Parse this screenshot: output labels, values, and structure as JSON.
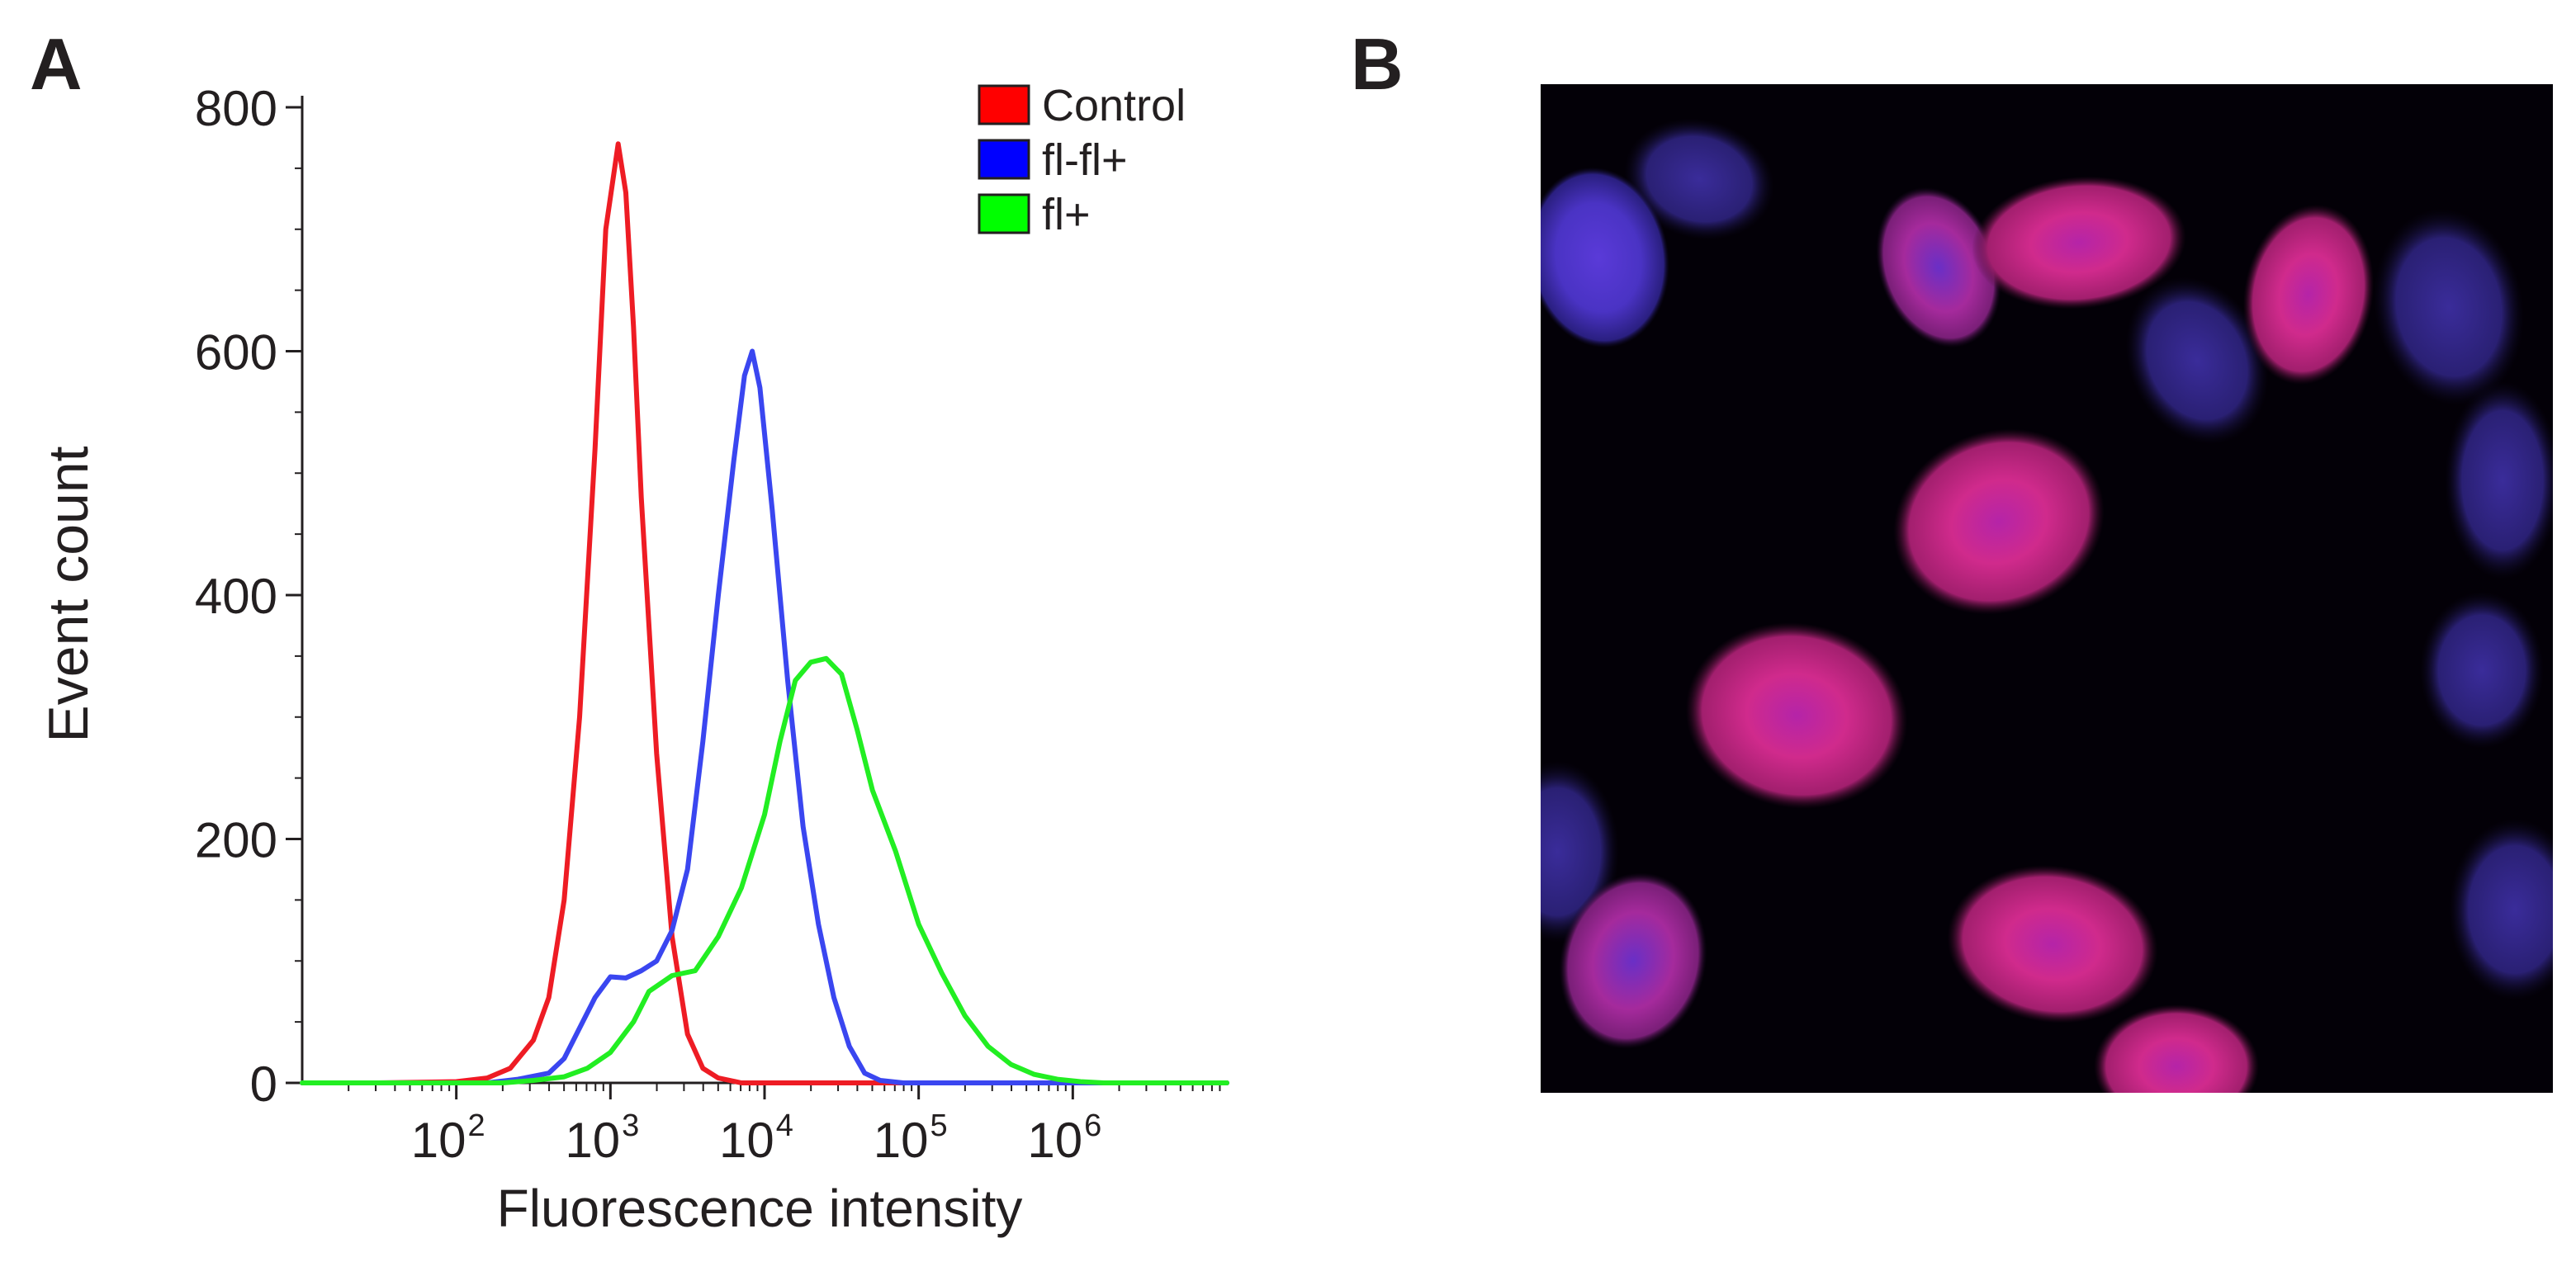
{
  "panel_labels": {
    "a": "A",
    "b": "B"
  },
  "chart_data": {
    "type": "line",
    "title": "",
    "xlabel": "Fluorescence intensity",
    "ylabel": "Event count",
    "x_scale": "log10",
    "xlim_log10": [
      1.0,
      7.0
    ],
    "ylim": [
      0,
      800
    ],
    "x_ticks": [
      {
        "base": "10",
        "exp": "2",
        "log10": 2
      },
      {
        "base": "10",
        "exp": "3",
        "log10": 3
      },
      {
        "base": "10",
        "exp": "4",
        "log10": 4
      },
      {
        "base": "10",
        "exp": "5",
        "log10": 5
      },
      {
        "base": "10",
        "exp": "6",
        "log10": 6
      }
    ],
    "y_ticks": [
      0,
      200,
      400,
      600,
      800
    ],
    "legend": {
      "placement": "top-right",
      "items": [
        {
          "label": "Control",
          "color": "#ff0000"
        },
        {
          "label": "fl-fl+",
          "color": "#0000ff"
        },
        {
          "label": "fl+",
          "color": "#00ff00"
        }
      ]
    },
    "series": [
      {
        "name": "Control",
        "color": "#ee1c24",
        "points": [
          [
            1.0,
            0
          ],
          [
            1.5,
            0
          ],
          [
            2.0,
            1
          ],
          [
            2.2,
            4
          ],
          [
            2.35,
            12
          ],
          [
            2.5,
            35
          ],
          [
            2.6,
            70
          ],
          [
            2.7,
            150
          ],
          [
            2.8,
            300
          ],
          [
            2.9,
            520
          ],
          [
            2.97,
            700
          ],
          [
            3.05,
            770
          ],
          [
            3.1,
            730
          ],
          [
            3.15,
            620
          ],
          [
            3.2,
            480
          ],
          [
            3.3,
            270
          ],
          [
            3.4,
            120
          ],
          [
            3.5,
            40
          ],
          [
            3.6,
            12
          ],
          [
            3.7,
            4
          ],
          [
            3.85,
            0
          ],
          [
            7.0,
            0
          ]
        ]
      },
      {
        "name": "fl-fl+",
        "color": "#3a46f0",
        "points": [
          [
            1.0,
            0
          ],
          [
            2.2,
            0
          ],
          [
            2.4,
            3
          ],
          [
            2.6,
            8
          ],
          [
            2.7,
            20
          ],
          [
            2.8,
            45
          ],
          [
            2.9,
            70
          ],
          [
            3.0,
            87
          ],
          [
            3.1,
            86
          ],
          [
            3.2,
            92
          ],
          [
            3.3,
            100
          ],
          [
            3.4,
            125
          ],
          [
            3.5,
            175
          ],
          [
            3.6,
            280
          ],
          [
            3.7,
            400
          ],
          [
            3.8,
            510
          ],
          [
            3.87,
            580
          ],
          [
            3.92,
            600
          ],
          [
            3.97,
            570
          ],
          [
            4.05,
            470
          ],
          [
            4.15,
            330
          ],
          [
            4.25,
            210
          ],
          [
            4.35,
            130
          ],
          [
            4.45,
            70
          ],
          [
            4.55,
            30
          ],
          [
            4.65,
            8
          ],
          [
            4.75,
            2
          ],
          [
            4.9,
            0
          ],
          [
            7.0,
            0
          ]
        ]
      },
      {
        "name": "fl+",
        "color": "#22ee22",
        "points": [
          [
            1.0,
            0
          ],
          [
            2.3,
            0
          ],
          [
            2.5,
            2
          ],
          [
            2.7,
            5
          ],
          [
            2.85,
            12
          ],
          [
            3.0,
            25
          ],
          [
            3.15,
            50
          ],
          [
            3.25,
            75
          ],
          [
            3.4,
            88
          ],
          [
            3.55,
            92
          ],
          [
            3.7,
            120
          ],
          [
            3.85,
            160
          ],
          [
            4.0,
            220
          ],
          [
            4.1,
            280
          ],
          [
            4.2,
            330
          ],
          [
            4.3,
            345
          ],
          [
            4.4,
            348
          ],
          [
            4.5,
            335
          ],
          [
            4.6,
            290
          ],
          [
            4.7,
            240
          ],
          [
            4.85,
            190
          ],
          [
            5.0,
            130
          ],
          [
            5.15,
            90
          ],
          [
            5.3,
            55
          ],
          [
            5.45,
            30
          ],
          [
            5.6,
            15
          ],
          [
            5.75,
            7
          ],
          [
            5.9,
            3
          ],
          [
            6.05,
            1
          ],
          [
            6.2,
            0
          ],
          [
            7.0,
            0
          ]
        ]
      }
    ]
  }
}
